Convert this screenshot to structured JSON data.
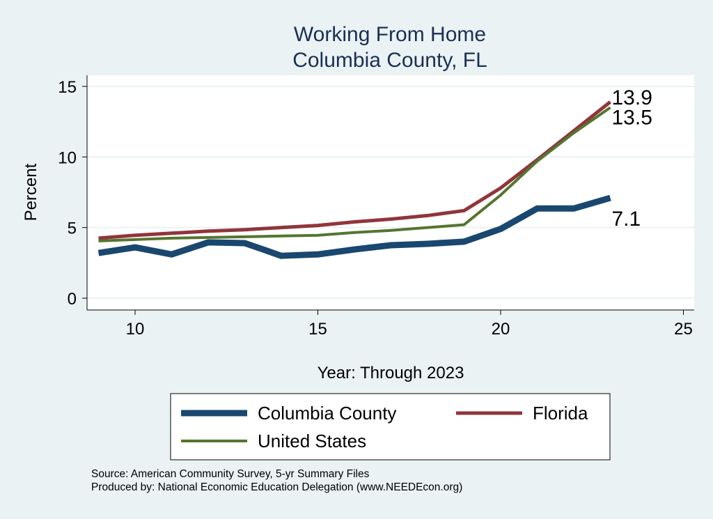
{
  "chart_data": {
    "type": "line",
    "title": "Working From Home",
    "subtitle": "Columbia County, FL",
    "xlabel": "Year: Through 2023",
    "ylabel": "Percent",
    "xlim": [
      8.7,
      25.3
    ],
    "ylim": [
      -0.4,
      15.6
    ],
    "xticks": [
      10,
      15,
      20,
      25
    ],
    "yticks": [
      0,
      5,
      10,
      15
    ],
    "grid": true,
    "legend_position": "bottom",
    "x": [
      9,
      10,
      11,
      12,
      13,
      14,
      15,
      16,
      17,
      18,
      19,
      20,
      21,
      22,
      23
    ],
    "series": [
      {
        "name": "Columbia County",
        "color": "#1a476f",
        "end_label": "7.1",
        "values": [
          3.2,
          3.6,
          3.1,
          3.95,
          3.9,
          3.0,
          3.1,
          3.45,
          3.75,
          3.85,
          4.0,
          4.9,
          6.35,
          6.35,
          7.1
        ]
      },
      {
        "name": "Florida",
        "color": "#90353b",
        "end_label": "13.9",
        "values": [
          4.25,
          4.45,
          4.6,
          4.75,
          4.85,
          5.0,
          5.15,
          5.4,
          5.6,
          5.85,
          6.2,
          7.8,
          9.8,
          11.85,
          13.9
        ]
      },
      {
        "name": "United States",
        "color": "#55752f",
        "end_label": "13.5",
        "values": [
          4.05,
          4.15,
          4.25,
          4.3,
          4.35,
          4.4,
          4.45,
          4.65,
          4.8,
          5.0,
          5.2,
          7.3,
          9.7,
          11.7,
          13.5
        ]
      }
    ]
  },
  "source": {
    "line1": "Source: American Community Survey, 5-yr Summary Files",
    "line2": "Produced by: National Economic Education Delegation (www.NEEDEcon.org)"
  }
}
